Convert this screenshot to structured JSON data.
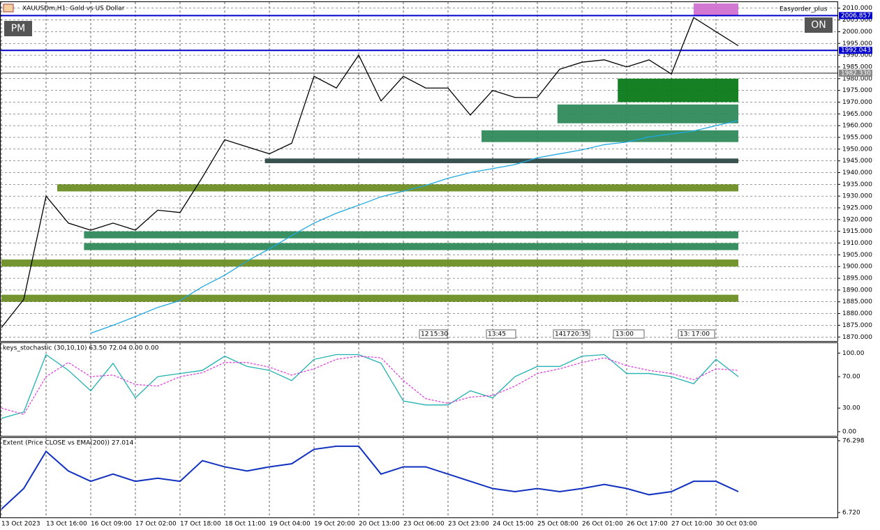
{
  "header": {
    "title": "XAUUSDm,H1: Gold vs US Dollar",
    "buttons": [
      "PM",
      "ON"
    ],
    "expert": "Easyorder_plus",
    "time_markers": [
      "12",
      "15:30",
      "13:45",
      "14",
      "17",
      "20:35",
      "13:00",
      "13:",
      "17:00"
    ]
  },
  "chart_data": [
    {
      "type": "line",
      "ylim": [
        1868,
        2012
      ],
      "yticks": [
        {
          "value": 1870,
          "label": "1870.000"
        },
        {
          "value": 1875,
          "label": "1875.000"
        },
        {
          "value": 1880,
          "label": "1880.000"
        },
        {
          "value": 1885,
          "label": "1885.000"
        },
        {
          "value": 1890,
          "label": "1890.000"
        },
        {
          "value": 1895,
          "label": "1895.000"
        },
        {
          "value": 1900,
          "label": "1900.000"
        },
        {
          "value": 1905,
          "label": "1905.000"
        },
        {
          "value": 1910,
          "label": "1910.000"
        },
        {
          "value": 1915,
          "label": "1915.000"
        },
        {
          "value": 1920,
          "label": "1920.000"
        },
        {
          "value": 1925,
          "label": "1925.000"
        },
        {
          "value": 1930,
          "label": "1930.000"
        },
        {
          "value": 1935,
          "label": "1935.000"
        },
        {
          "value": 1940,
          "label": "1940.000"
        },
        {
          "value": 1945,
          "label": "1945.000"
        },
        {
          "value": 1950,
          "label": "1950.000"
        },
        {
          "value": 1955,
          "label": "1955.000"
        },
        {
          "value": 1960,
          "label": "1960.000"
        },
        {
          "value": 1965,
          "label": "1965.000"
        },
        {
          "value": 1970,
          "label": "1970.000"
        },
        {
          "value": 1975,
          "label": "1975.000"
        },
        {
          "value": 1980,
          "label": "1980.000"
        },
        {
          "value": 1985,
          "label": "1985.000"
        },
        {
          "value": 1990,
          "label": "1990.000"
        },
        {
          "value": 1995,
          "label": "1995.000"
        },
        {
          "value": 2000,
          "label": "2000.000"
        },
        {
          "value": 2005,
          "label": "2005.000"
        },
        {
          "value": 2010,
          "label": "2010.000"
        }
      ],
      "grid": true,
      "series": [
        {
          "color": "#000000",
          "values": [
            1874,
            1886,
            1930,
            1918.5,
            1915.5,
            1918.5,
            1915.5,
            1924,
            1923,
            1938,
            1954,
            1951,
            1948,
            1952.5,
            1981,
            1976,
            1990,
            1970.5,
            1981,
            1976,
            1976,
            1964.5,
            1975,
            1972,
            1972,
            1984,
            1987,
            1988,
            1985,
            1988,
            1982,
            2006,
            2000,
            1994
          ]
        },
        {
          "color": "#1fa8e0",
          "values": [
            null,
            null,
            null,
            null,
            1871.6,
            1875,
            1878.7,
            1882.6,
            1885.5,
            1891.4,
            1896.3,
            1902.3,
            1907.5,
            1913.2,
            1918.5,
            1922.7,
            1926.1,
            1929.7,
            1932.1,
            1934.5,
            1937.6,
            1940,
            1941.7,
            1943.4,
            1946.3,
            1948,
            1949.7,
            1951.9,
            1953,
            1955.2,
            1956.5,
            1957.7,
            1960,
            1962.2
          ]
        }
      ],
      "zones": [
        {
          "low": 2007,
          "high": 2012,
          "start": 31,
          "color": "#d070d0"
        },
        {
          "low": 1970,
          "high": 1980,
          "start": 27.6,
          "color": "#0a7a18"
        },
        {
          "low": 1961,
          "high": 1969,
          "start": 24.9,
          "color": "#2f8a5a"
        },
        {
          "low": 1953,
          "high": 1958,
          "start": 21.5,
          "color": "#2f8a5a"
        },
        {
          "low": 1944,
          "high": 1946,
          "start": 11.8,
          "color": "#2f4a48"
        },
        {
          "low": 1932,
          "high": 1935,
          "start": 2.5,
          "color": "#6b8e23"
        },
        {
          "low": 1912,
          "high": 1915,
          "start": 3.7,
          "color": "#2f8a5a"
        },
        {
          "low": 1907,
          "high": 1910,
          "start": 3.7,
          "color": "#2f8a5a"
        },
        {
          "low": 1900,
          "high": 1903,
          "start": 0,
          "color": "#6b8e23"
        },
        {
          "low": 1885,
          "high": 1888,
          "start": 0,
          "color": "#6b8e23"
        }
      ],
      "price_lines": [
        {
          "value": 2006.857,
          "label": "2006.857",
          "color": "#0000cc"
        },
        {
          "value": 1992.043,
          "label": "1992.043",
          "color": "#0000cc"
        },
        {
          "value": 1982.33,
          "label": "1982.330",
          "color": "#888888"
        }
      ]
    },
    {
      "type": "line",
      "title": "keys_stochastic (30,10,10) 63.50 72.04 0.00 0.00",
      "ylim": [
        0,
        110
      ],
      "yticks": [
        {
          "value": 0,
          "label": "0.00"
        },
        {
          "value": 30,
          "label": "30.00"
        },
        {
          "value": 70,
          "label": "70.00"
        },
        {
          "value": 100,
          "label": "100.00"
        }
      ],
      "series": [
        {
          "color": "#20b0b0",
          "values": [
            17,
            25,
            98,
            78,
            52,
            87,
            43,
            70,
            74,
            78,
            96,
            83,
            78,
            65,
            92,
            98,
            98,
            87,
            39,
            34,
            34,
            52,
            43,
            70,
            83,
            83,
            96,
            98,
            74,
            74,
            70,
            61,
            92,
            70
          ]
        },
        {
          "color": "#e040e0",
          "dash": true,
          "values": [
            30,
            22,
            70,
            88,
            70,
            72,
            60,
            58,
            70,
            75,
            88,
            88,
            82,
            72,
            80,
            92,
            96,
            94,
            65,
            42,
            36,
            44,
            46,
            58,
            74,
            80,
            88,
            94,
            84,
            78,
            74,
            66,
            80,
            78
          ]
        }
      ]
    },
    {
      "type": "line",
      "title": "Extent (Price CLOSE vs EMA(200)) 27.014",
      "ylim": [
        6.72,
        76.298
      ],
      "yticks": [
        {
          "value": 6.72,
          "label": "6.720"
        },
        {
          "value": 76.298,
          "label": "76.298"
        }
      ],
      "categories": [
        "13 Oct 2023",
        null,
        "13 Oct 16:00",
        null,
        "16 Oct 09:00",
        null,
        "17 Oct 02:00",
        null,
        "17 Oct 18:00",
        null,
        "18 Oct 11:00",
        null,
        "19 Oct 04:00",
        null,
        "19 Oct 20:00",
        null,
        "20 Oct 13:00",
        null,
        "23 Oct 06:00",
        null,
        "23 Oct 23:00",
        null,
        "24 Oct 15:00",
        null,
        "25 Oct 08:00",
        null,
        "26 Oct 01:00",
        null,
        "26 Oct 17:00",
        null,
        "27 Oct 10:00",
        null,
        "30 Oct 03:00",
        null
      ],
      "series": [
        {
          "color": "#1030c0",
          "values": [
            10,
            30,
            66,
            47,
            37,
            44,
            37,
            40,
            37,
            57,
            51,
            47,
            51,
            54,
            68,
            71,
            71,
            44,
            51,
            51,
            44,
            37,
            30,
            27,
            30,
            27,
            30,
            34,
            30,
            24,
            27,
            37,
            37,
            27
          ]
        }
      ]
    }
  ]
}
